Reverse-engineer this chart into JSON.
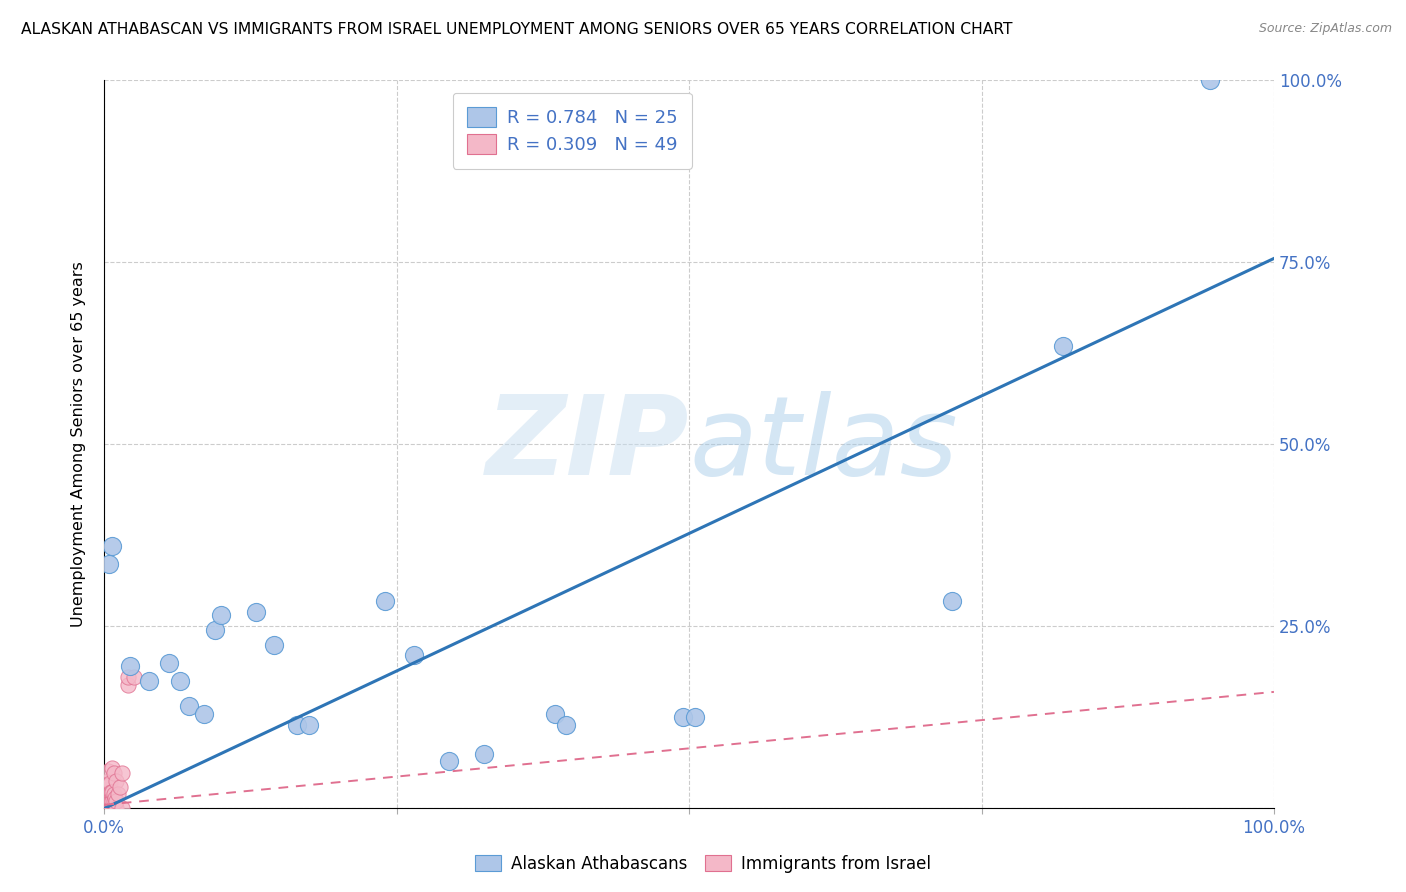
{
  "title": "ALASKAN ATHABASCAN VS IMMIGRANTS FROM ISRAEL UNEMPLOYMENT AMONG SENIORS OVER 65 YEARS CORRELATION CHART",
  "source": "Source: ZipAtlas.com",
  "ylabel": "Unemployment Among Seniors over 65 years",
  "watermark_zip": "ZIP",
  "watermark_atlas": "atlas",
  "blue_R": 0.784,
  "blue_N": 25,
  "pink_R": 0.309,
  "pink_N": 49,
  "blue_color": "#aec6e8",
  "blue_edge_color": "#5b9bd5",
  "blue_line_color": "#2e75b6",
  "pink_color": "#f4b8c8",
  "pink_edge_color": "#e07090",
  "pink_line_color": "#e07090",
  "blue_scatter": [
    [
      0.004,
      0.335
    ],
    [
      0.007,
      0.36
    ],
    [
      0.022,
      0.195
    ],
    [
      0.038,
      0.175
    ],
    [
      0.055,
      0.2
    ],
    [
      0.065,
      0.175
    ],
    [
      0.072,
      0.14
    ],
    [
      0.085,
      0.13
    ],
    [
      0.095,
      0.245
    ],
    [
      0.1,
      0.265
    ],
    [
      0.13,
      0.27
    ],
    [
      0.145,
      0.225
    ],
    [
      0.165,
      0.115
    ],
    [
      0.175,
      0.115
    ],
    [
      0.24,
      0.285
    ],
    [
      0.265,
      0.21
    ],
    [
      0.295,
      0.065
    ],
    [
      0.325,
      0.075
    ],
    [
      0.385,
      0.13
    ],
    [
      0.395,
      0.115
    ],
    [
      0.495,
      0.125
    ],
    [
      0.505,
      0.125
    ],
    [
      0.725,
      0.285
    ],
    [
      0.82,
      0.635
    ],
    [
      0.945,
      1.0
    ]
  ],
  "pink_scatter": [
    [
      0.0,
      0.0
    ],
    [
      0.0,
      0.005
    ],
    [
      0.0,
      0.01
    ],
    [
      0.0,
      0.015
    ],
    [
      0.0,
      0.02
    ],
    [
      0.0,
      0.025
    ],
    [
      0.0,
      0.03
    ],
    [
      0.001,
      0.0
    ],
    [
      0.001,
      0.008
    ],
    [
      0.001,
      0.018
    ],
    [
      0.002,
      0.0
    ],
    [
      0.002,
      0.012
    ],
    [
      0.002,
      0.022
    ],
    [
      0.003,
      0.005
    ],
    [
      0.003,
      0.015
    ],
    [
      0.003,
      0.025
    ],
    [
      0.003,
      0.038
    ],
    [
      0.003,
      0.052
    ],
    [
      0.004,
      0.0
    ],
    [
      0.004,
      0.01
    ],
    [
      0.004,
      0.02
    ],
    [
      0.004,
      0.032
    ],
    [
      0.005,
      0.0
    ],
    [
      0.005,
      0.012
    ],
    [
      0.005,
      0.022
    ],
    [
      0.005,
      0.035
    ],
    [
      0.006,
      0.0
    ],
    [
      0.006,
      0.01
    ],
    [
      0.006,
      0.022
    ],
    [
      0.007,
      0.0
    ],
    [
      0.007,
      0.01
    ],
    [
      0.007,
      0.022
    ],
    [
      0.007,
      0.055
    ],
    [
      0.008,
      0.0
    ],
    [
      0.008,
      0.01
    ],
    [
      0.008,
      0.02
    ],
    [
      0.008,
      0.048
    ],
    [
      0.009,
      0.0
    ],
    [
      0.009,
      0.015
    ],
    [
      0.01,
      0.0
    ],
    [
      0.01,
      0.01
    ],
    [
      0.01,
      0.038
    ],
    [
      0.012,
      0.02
    ],
    [
      0.013,
      0.03
    ],
    [
      0.015,
      0.0
    ],
    [
      0.015,
      0.048
    ],
    [
      0.02,
      0.17
    ],
    [
      0.02,
      0.18
    ],
    [
      0.025,
      0.18
    ]
  ],
  "blue_line_x": [
    0.0,
    1.0
  ],
  "blue_line_y": [
    0.0,
    0.755
  ],
  "pink_line_x": [
    0.0,
    1.0
  ],
  "pink_line_y": [
    0.005,
    0.16
  ],
  "xtick_positions": [
    0.0,
    0.25,
    0.5,
    0.75,
    1.0
  ],
  "xticklabels": [
    "0.0%",
    "",
    "",
    "",
    "100.0%"
  ],
  "ytick_positions": [
    0.0,
    0.25,
    0.5,
    0.75,
    1.0
  ],
  "right_yticklabels": [
    "",
    "25.0%",
    "50.0%",
    "75.0%",
    "100.0%"
  ],
  "legend_labels": [
    "Alaskan Athabascans",
    "Immigrants from Israel"
  ],
  "bg_color": "#ffffff",
  "grid_color": "#cccccc",
  "tick_color": "#4472c4",
  "label_color": "#4472c4"
}
